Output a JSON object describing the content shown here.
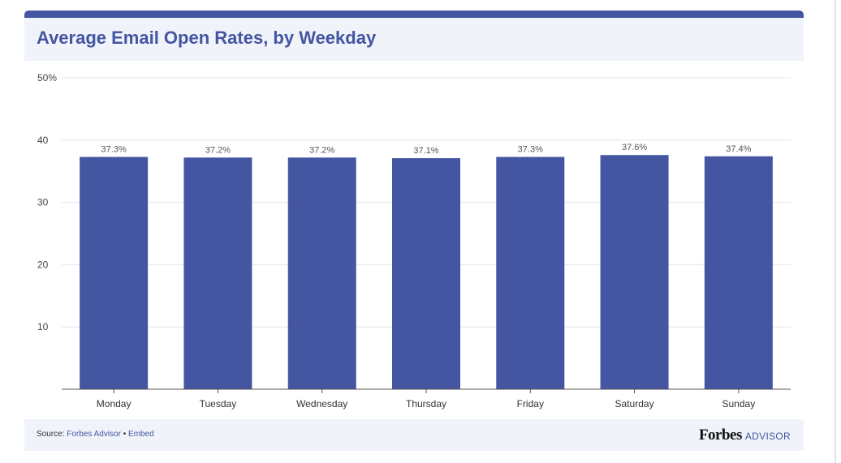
{
  "title": "Average Email Open Rates, by Weekday",
  "footer": {
    "source_prefix": "Source:",
    "source_link": "Forbes Advisor",
    "separator": "•",
    "embed_link": "Embed",
    "brand_name": "Forbes",
    "brand_suffix": "ADVISOR"
  },
  "colors": {
    "bar": "#4455a1",
    "title": "#4455a1",
    "header_bg": "#f0f3fa",
    "grid": "#e6e6e6"
  },
  "chart_data": {
    "type": "bar",
    "title": "Average Email Open Rates, by Weekday",
    "xlabel": "",
    "ylabel": "",
    "categories": [
      "Monday",
      "Tuesday",
      "Wednesday",
      "Thursday",
      "Friday",
      "Saturday",
      "Sunday"
    ],
    "values": [
      37.3,
      37.2,
      37.2,
      37.1,
      37.3,
      37.6,
      37.4
    ],
    "value_labels": [
      "37.3%",
      "37.2%",
      "37.2%",
      "37.1%",
      "37.3%",
      "37.6%",
      "37.4%"
    ],
    "ylim": [
      0,
      50
    ],
    "yticks": [
      10,
      20,
      30,
      40,
      50
    ],
    "ytick_labels": [
      "10",
      "20",
      "30",
      "40",
      "50%"
    ],
    "grid": true,
    "legend": "none"
  }
}
